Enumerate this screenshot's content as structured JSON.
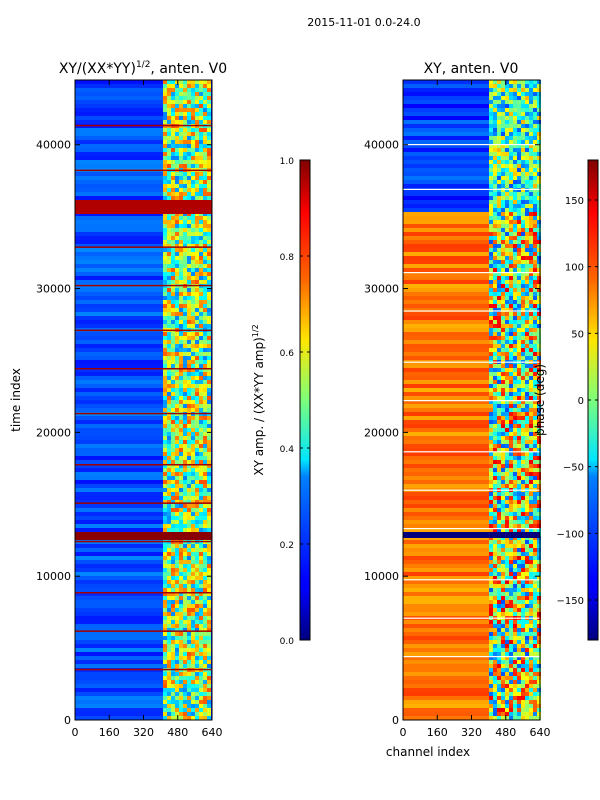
{
  "figure": {
    "suptitle": "2015-11-01 0.0-24.0"
  },
  "chart_data": [
    {
      "type": "heatmap",
      "title": "XY/(XX*YY)",
      "title_sup": "1/2",
      "title_suffix": ", anten. V0",
      "xlabel": "",
      "ylabel": "time index",
      "xlim": [
        0,
        640
      ],
      "ylim": [
        0,
        44500
      ],
      "xticks": [
        0,
        160,
        320,
        480,
        640
      ],
      "yticks": [
        0,
        10000,
        20000,
        30000,
        40000
      ],
      "colorbar": {
        "label": "XY amp. / (XX*YY amp)",
        "label_sup": "1/2",
        "range": [
          0.0,
          1.0
        ],
        "ticks": [
          "0.0",
          "0.2",
          "0.4",
          "0.6",
          "0.8",
          "1.0"
        ]
      }
    },
    {
      "type": "heatmap",
      "title": "XY, anten. V0",
      "xlabel": "channel index",
      "ylabel": "",
      "xlim": [
        0,
        640
      ],
      "ylim": [
        0,
        44500
      ],
      "xticks": [
        0,
        160,
        320,
        480,
        640
      ],
      "yticks": [
        0,
        10000,
        20000,
        30000,
        40000
      ],
      "colorbar": {
        "label": "phase (deg)",
        "range": [
          -180,
          180
        ],
        "ticks": [
          "−150",
          "−100",
          "−50",
          "0",
          "50",
          "100",
          "150"
        ]
      }
    }
  ]
}
